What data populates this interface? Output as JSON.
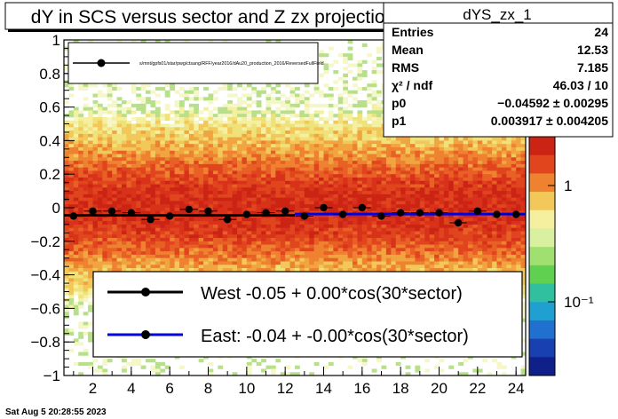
{
  "chart_data": {
    "type": "scatter",
    "title": "dY in SCS versus sector and Z zx projection",
    "xlabel": "",
    "ylabel": "",
    "xlim": [
      0.5,
      24.5
    ],
    "ylim": [
      -1,
      1
    ],
    "x_ticks": [
      "2",
      "4",
      "6",
      "8",
      "10",
      "12",
      "14",
      "16",
      "18",
      "20",
      "22",
      "24"
    ],
    "y_ticks": [
      "−1",
      "−0.8",
      "−0.6",
      "−0.4",
      "−0.2",
      "0",
      "0.2",
      "0.4",
      "0.6",
      "0.8",
      "1"
    ],
    "colorbar_ticks": [
      "1",
      "10⁻¹"
    ],
    "grid": false,
    "points": {
      "name": "/star/pwg/ctsang/RFF/year2016/dAu20_production_2016/ReversedFullField",
      "x": [
        1,
        2,
        3,
        4,
        5,
        6,
        7,
        8,
        9,
        10,
        11,
        12,
        13,
        14,
        15,
        16,
        17,
        18,
        19,
        20,
        21,
        22,
        23,
        24
      ],
      "y": [
        -0.05,
        -0.02,
        -0.02,
        -0.03,
        -0.07,
        -0.05,
        -0.01,
        -0.02,
        -0.07,
        -0.04,
        -0.03,
        -0.02,
        -0.05,
        0.0,
        -0.04,
        0.0,
        -0.05,
        -0.03,
        -0.03,
        -0.03,
        -0.09,
        -0.02,
        -0.04,
        -0.04
      ]
    },
    "fits": [
      {
        "name": "West -0.05 +  0.00*cos(30*sector)",
        "x_range": [
          0.5,
          12.5
        ],
        "y": -0.045,
        "color": "#000000"
      },
      {
        "name": "East: -0.04 + -0.00*cos(30*sector)",
        "x_range": [
          12.5,
          24.5
        ],
        "y": -0.038,
        "color": "#0000dd"
      }
    ],
    "legend_placement": "bottom"
  },
  "stats": {
    "title": "dYS_zx_1",
    "rows": [
      {
        "label": "Entries",
        "value": "24"
      },
      {
        "label": "Mean",
        "value": "12.53"
      },
      {
        "label": "RMS",
        "value": "7.185"
      },
      {
        "label": "χ² / ndf",
        "value": "46.03 / 10"
      },
      {
        "label": "p0",
        "value": "−0.04592 ± 0.00295"
      },
      {
        "label": "p1",
        "value": "0.003917 ± 0.004205"
      }
    ]
  },
  "small_legend_label": "s/mnt/gpfs01/star/pwg/ctsang/RFF/year2016/dAu20_production_2016/ReversedFullField",
  "timestamp": "Sat Aug  5 20:28:55 2023",
  "colors": {
    "west": "#000000",
    "east": "#0000dd"
  }
}
